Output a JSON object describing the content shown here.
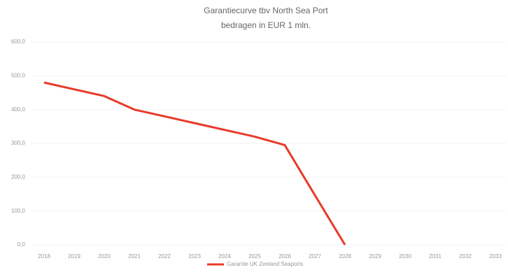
{
  "chart_data": {
    "type": "line",
    "title": "Garantiecurve tbv North Sea Port",
    "subtitle": "bedragen in EUR 1 mln.",
    "categories": [
      "2018",
      "2019",
      "2020",
      "2021",
      "2022",
      "2023",
      "2024",
      "2025",
      "2026",
      "2027",
      "2028",
      "2029",
      "2030",
      "2031",
      "2032",
      "2033"
    ],
    "series": [
      {
        "name": "Garantie UK Zeeland Seaports",
        "color": "#e83a2a",
        "values": [
          480,
          460,
          440,
          400,
          380,
          360,
          340,
          320,
          295,
          147,
          0,
          null,
          null,
          null,
          null,
          null
        ]
      }
    ],
    "ylim": [
      0,
      600
    ],
    "yticks": [
      {
        "value": 0,
        "label": "0,0"
      },
      {
        "value": 100,
        "label": "100,0"
      },
      {
        "value": 200,
        "label": "200,0"
      },
      {
        "value": 300,
        "label": "300,0"
      },
      {
        "value": 400,
        "label": "400,0"
      },
      {
        "value": 500,
        "label": "500,0"
      },
      {
        "value": 600,
        "label": "600,0"
      }
    ],
    "grid": true
  }
}
